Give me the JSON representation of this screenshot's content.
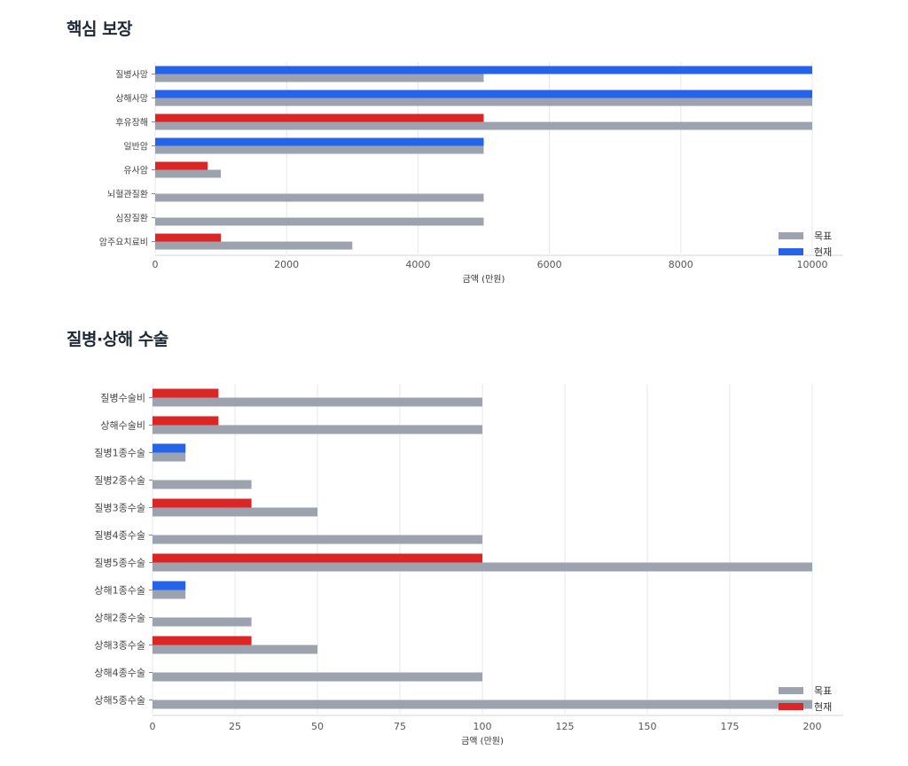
{
  "colors": {
    "target": "#9ca3af",
    "current_blue": "#2563eb",
    "current_red": "#dc2626",
    "grid": "#e5e7eb",
    "axis": "#d1d5db"
  },
  "sections": [
    {
      "title": "핵심 보장"
    },
    {
      "title": "질병·상해 수술"
    }
  ],
  "chart_data": [
    {
      "type": "bar",
      "orientation": "horizontal",
      "title": "핵심 보장",
      "xlabel": "금액 (만원)",
      "ylabel": "",
      "xlim": [
        0,
        10000
      ],
      "xticks": [
        0,
        2000,
        4000,
        6000,
        8000,
        10000
      ],
      "grid": true,
      "legend_position": "bottom-right",
      "legend": [
        {
          "label": "목표",
          "color": "#9ca3af"
        },
        {
          "label": "현재",
          "color": "#2563eb"
        }
      ],
      "categories": [
        "질병사망",
        "상해사망",
        "후유장해",
        "일반암",
        "유사암",
        "뇌혈관질환",
        "심장질환",
        "암주요치료비"
      ],
      "series": [
        {
          "name": "목표",
          "color": "#9ca3af",
          "values": [
            5000,
            10000,
            10000,
            5000,
            1000,
            5000,
            5000,
            3000
          ]
        },
        {
          "name": "현재",
          "values": [
            10000,
            10000,
            5000,
            5000,
            800,
            0,
            0,
            1000
          ],
          "colors": [
            "#2563eb",
            "#2563eb",
            "#dc2626",
            "#2563eb",
            "#dc2626",
            "#dc2626",
            "#dc2626",
            "#dc2626"
          ]
        }
      ]
    },
    {
      "type": "bar",
      "orientation": "horizontal",
      "title": "질병·상해 수술",
      "xlabel": "금액 (만원)",
      "ylabel": "",
      "xlim": [
        0,
        200
      ],
      "xticks": [
        0,
        25,
        50,
        75,
        100,
        125,
        150,
        175,
        200
      ],
      "grid": true,
      "legend_position": "bottom-right",
      "legend": [
        {
          "label": "목표",
          "color": "#9ca3af"
        },
        {
          "label": "현재",
          "color": "#dc2626"
        }
      ],
      "categories": [
        "질병수술비",
        "상해수술비",
        "질병1종수술",
        "질병2종수술",
        "질병3종수술",
        "질병4종수술",
        "질병5종수술",
        "상해1종수술",
        "상해2종수술",
        "상해3종수술",
        "상해4종수술",
        "상해5종수술"
      ],
      "series": [
        {
          "name": "목표",
          "color": "#9ca3af",
          "values": [
            100,
            100,
            10,
            30,
            50,
            100,
            200,
            10,
            30,
            50,
            100,
            200
          ]
        },
        {
          "name": "현재",
          "values": [
            20,
            20,
            10,
            0,
            30,
            0,
            100,
            10,
            0,
            30,
            0,
            0
          ],
          "colors": [
            "#dc2626",
            "#dc2626",
            "#2563eb",
            "#dc2626",
            "#dc2626",
            "#dc2626",
            "#dc2626",
            "#2563eb",
            "#dc2626",
            "#dc2626",
            "#dc2626",
            "#dc2626"
          ]
        }
      ]
    }
  ]
}
